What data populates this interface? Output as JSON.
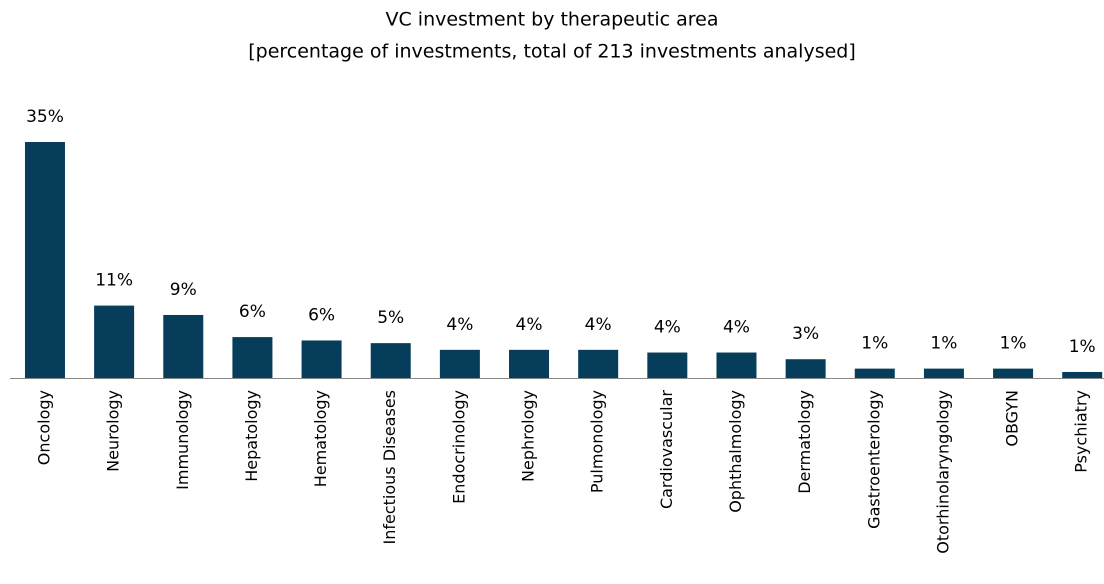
{
  "chart_data": {
    "type": "bar",
    "title": "VC investment by therapeutic area",
    "subtitle": "[percentage of investments, total of 213 investments analysed]",
    "categories": [
      "Oncology",
      "Neurology",
      "Immunology",
      "Hepatology",
      "Hematology",
      "Infectious Diseases",
      "Endocrinology",
      "Nephrology",
      "Pulmonology",
      "Cardiovascular",
      "Ophthalmology",
      "Dermatology",
      "Gastroenterology",
      "Otorhinolaryngology",
      "OBGYN",
      "Psychiatry"
    ],
    "values": [
      35.2,
      10.8,
      9.4,
      6.1,
      5.6,
      5.2,
      4.2,
      4.2,
      4.2,
      3.8,
      3.8,
      2.8,
      1.4,
      1.4,
      1.4,
      0.9
    ],
    "value_labels": [
      "35%",
      "11%",
      "9%",
      "6%",
      "6%",
      "5%",
      "4%",
      "4%",
      "4%",
      "4%",
      "4%",
      "3%",
      "1%",
      "1%",
      "1%",
      "1%"
    ],
    "color": "#063d5b"
  }
}
